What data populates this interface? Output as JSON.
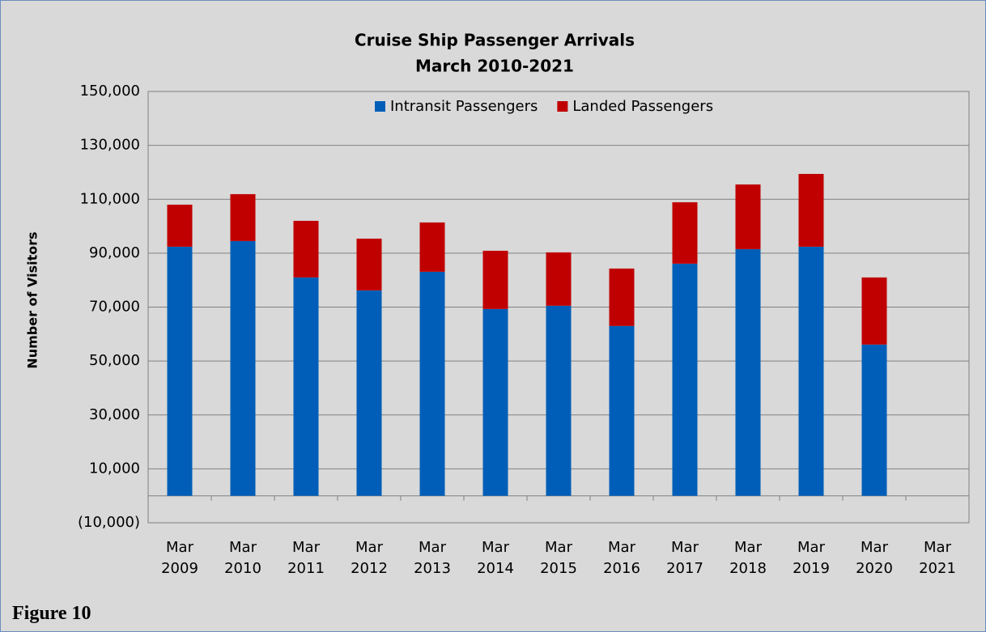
{
  "chart_data": {
    "type": "stacked_bar",
    "title": "Cruise Ship Passenger Arrivals",
    "subtitle": "March 2010-2021",
    "y_label": "Number of Visitors",
    "caption": "Figure 10",
    "categories": [
      "Mar 2009",
      "Mar 2010",
      "Mar 2011",
      "Mar 2012",
      "Mar 2013",
      "Mar 2014",
      "Mar 2015",
      "Mar 2016",
      "Mar 2017",
      "Mar 2018",
      "Mar 2019",
      "Mar 2020",
      "Mar 2021"
    ],
    "series": [
      {
        "name": "Intransit Passengers",
        "color": "#005eb8",
        "values": [
          92400,
          94500,
          81000,
          76200,
          83100,
          69300,
          70500,
          63000,
          86100,
          91500,
          92400,
          56100,
          null
        ]
      },
      {
        "name": "Landed Passengers",
        "color": "#c00000",
        "values": [
          15600,
          17400,
          21000,
          19200,
          18300,
          21600,
          19800,
          21300,
          22800,
          24000,
          27000,
          24900,
          null
        ]
      }
    ],
    "ylim": [
      -10000,
      150000
    ],
    "yticks": [
      {
        "value": -10000,
        "label": "(10,000)"
      },
      {
        "value": 10000,
        "label": "10,000"
      },
      {
        "value": 30000,
        "label": "30,000"
      },
      {
        "value": 50000,
        "label": "50,000"
      },
      {
        "value": 70000,
        "label": "70,000"
      },
      {
        "value": 90000,
        "label": "90,000"
      },
      {
        "value": 110000,
        "label": "110,000"
      },
      {
        "value": 130000,
        "label": "130,000"
      },
      {
        "value": 150000,
        "label": "150,000"
      }
    ],
    "grid": true,
    "legend": "top"
  }
}
